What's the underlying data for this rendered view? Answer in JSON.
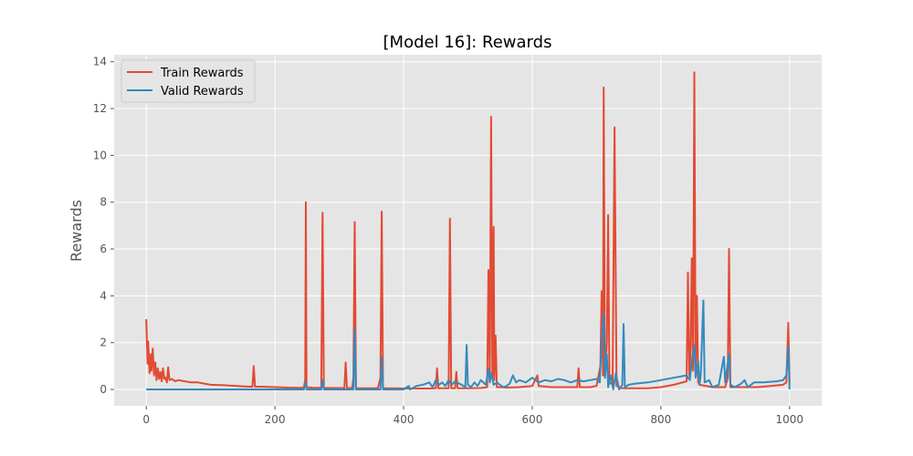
{
  "chart_data": {
    "type": "line",
    "title": "[Model 16]: Rewards",
    "xlabel": "",
    "ylabel": "Rewards",
    "xlim": [
      -50,
      1050
    ],
    "ylim": [
      -0.7,
      14.3
    ],
    "xticks": [
      0,
      200,
      400,
      600,
      800,
      1000
    ],
    "yticks": [
      0,
      2,
      4,
      6,
      8,
      10,
      12,
      14
    ],
    "grid": true,
    "legend_position": "top-left",
    "background_color": "#e5e5e5",
    "series": [
      {
        "name": "Train Rewards",
        "color": "#e24a33",
        "points": [
          [
            0,
            3.0
          ],
          [
            2,
            1.1
          ],
          [
            3,
            2.05
          ],
          [
            5,
            0.7
          ],
          [
            7,
            1.5
          ],
          [
            8,
            0.8
          ],
          [
            10,
            1.75
          ],
          [
            12,
            0.6
          ],
          [
            14,
            1.15
          ],
          [
            16,
            0.4
          ],
          [
            18,
            0.9
          ],
          [
            20,
            0.45
          ],
          [
            22,
            0.75
          ],
          [
            24,
            0.35
          ],
          [
            26,
            0.9
          ],
          [
            28,
            0.45
          ],
          [
            30,
            0.5
          ],
          [
            32,
            0.3
          ],
          [
            34,
            0.95
          ],
          [
            36,
            0.4
          ],
          [
            40,
            0.45
          ],
          [
            45,
            0.35
          ],
          [
            50,
            0.4
          ],
          [
            60,
            0.35
          ],
          [
            70,
            0.3
          ],
          [
            80,
            0.3
          ],
          [
            90,
            0.25
          ],
          [
            100,
            0.2
          ],
          [
            120,
            0.18
          ],
          [
            140,
            0.15
          ],
          [
            160,
            0.12
          ],
          [
            165,
            0.12
          ],
          [
            167,
            1.0
          ],
          [
            169,
            0.12
          ],
          [
            180,
            0.12
          ],
          [
            200,
            0.1
          ],
          [
            220,
            0.08
          ],
          [
            240,
            0.07
          ],
          [
            245,
            0.08
          ],
          [
            247,
            0.4
          ],
          [
            248,
            8.0
          ],
          [
            249,
            0.1
          ],
          [
            260,
            0.07
          ],
          [
            272,
            0.07
          ],
          [
            274,
            7.55
          ],
          [
            276,
            0.07
          ],
          [
            290,
            0.06
          ],
          [
            308,
            0.06
          ],
          [
            310,
            1.15
          ],
          [
            312,
            0.06
          ],
          [
            320,
            0.06
          ],
          [
            322,
            0.5
          ],
          [
            324,
            7.15
          ],
          [
            326,
            0.05
          ],
          [
            340,
            0.05
          ],
          [
            360,
            0.05
          ],
          [
            364,
            0.5
          ],
          [
            366,
            7.6
          ],
          [
            368,
            0.05
          ],
          [
            380,
            0.05
          ],
          [
            400,
            0.04
          ],
          [
            420,
            0.04
          ],
          [
            440,
            0.04
          ],
          [
            450,
            0.05
          ],
          [
            452,
            0.9
          ],
          [
            454,
            0.05
          ],
          [
            470,
            0.05
          ],
          [
            472,
            7.3
          ],
          [
            474,
            0.05
          ],
          [
            480,
            0.05
          ],
          [
            482,
            0.75
          ],
          [
            484,
            0.05
          ],
          [
            500,
            0.05
          ],
          [
            520,
            0.06
          ],
          [
            530,
            0.1
          ],
          [
            532,
            5.1
          ],
          [
            534,
            0.3
          ],
          [
            536,
            11.65
          ],
          [
            538,
            0.5
          ],
          [
            540,
            6.95
          ],
          [
            541,
            0.4
          ],
          [
            543,
            2.3
          ],
          [
            545,
            0.1
          ],
          [
            550,
            0.1
          ],
          [
            560,
            0.08
          ],
          [
            580,
            0.1
          ],
          [
            600,
            0.15
          ],
          [
            608,
            0.6
          ],
          [
            610,
            0.15
          ],
          [
            630,
            0.1
          ],
          [
            650,
            0.1
          ],
          [
            670,
            0.1
          ],
          [
            672,
            0.9
          ],
          [
            674,
            0.1
          ],
          [
            690,
            0.1
          ],
          [
            700,
            0.15
          ],
          [
            706,
            1.0
          ],
          [
            708,
            4.2
          ],
          [
            710,
            0.6
          ],
          [
            711,
            12.9
          ],
          [
            713,
            0.5
          ],
          [
            716,
            2.0
          ],
          [
            718,
            7.45
          ],
          [
            720,
            0.3
          ],
          [
            725,
            0.2
          ],
          [
            728,
            11.2
          ],
          [
            731,
            0.15
          ],
          [
            740,
            0.05
          ],
          [
            760,
            0.05
          ],
          [
            780,
            0.05
          ],
          [
            800,
            0.1
          ],
          [
            820,
            0.2
          ],
          [
            840,
            0.35
          ],
          [
            842,
            5.0
          ],
          [
            844,
            0.6
          ],
          [
            846,
            1.5
          ],
          [
            848,
            5.6
          ],
          [
            850,
            0.8
          ],
          [
            852,
            13.55
          ],
          [
            854,
            0.6
          ],
          [
            856,
            4.0
          ],
          [
            858,
            0.3
          ],
          [
            860,
            0.2
          ],
          [
            880,
            0.1
          ],
          [
            900,
            0.1
          ],
          [
            904,
            0.5
          ],
          [
            906,
            6.0
          ],
          [
            908,
            0.1
          ],
          [
            930,
            0.1
          ],
          [
            950,
            0.1
          ],
          [
            970,
            0.15
          ],
          [
            990,
            0.2
          ],
          [
            995,
            0.3
          ],
          [
            998,
            2.85
          ],
          [
            1000,
            0.3
          ]
        ]
      },
      {
        "name": "Valid Rewards",
        "color": "#348abd",
        "points": [
          [
            0,
            0.0
          ],
          [
            100,
            0.0
          ],
          [
            200,
            0.0
          ],
          [
            245,
            0.0
          ],
          [
            247,
            0.3
          ],
          [
            249,
            0.0
          ],
          [
            272,
            0.0
          ],
          [
            274,
            0.4
          ],
          [
            276,
            0.0
          ],
          [
            322,
            0.0
          ],
          [
            324,
            2.6
          ],
          [
            326,
            0.0
          ],
          [
            364,
            0.0
          ],
          [
            366,
            1.4
          ],
          [
            368,
            0.0
          ],
          [
            400,
            0.0
          ],
          [
            408,
            0.15
          ],
          [
            410,
            0.0
          ],
          [
            420,
            0.15
          ],
          [
            430,
            0.2
          ],
          [
            440,
            0.3
          ],
          [
            445,
            0.1
          ],
          [
            450,
            0.4
          ],
          [
            455,
            0.2
          ],
          [
            460,
            0.3
          ],
          [
            465,
            0.15
          ],
          [
            470,
            0.4
          ],
          [
            475,
            0.2
          ],
          [
            480,
            0.35
          ],
          [
            490,
            0.2
          ],
          [
            496,
            0.1
          ],
          [
            498,
            1.9
          ],
          [
            500,
            0.2
          ],
          [
            505,
            0.1
          ],
          [
            510,
            0.3
          ],
          [
            515,
            0.15
          ],
          [
            520,
            0.4
          ],
          [
            528,
            0.2
          ],
          [
            532,
            0.9
          ],
          [
            534,
            0.3
          ],
          [
            536,
            0.7
          ],
          [
            540,
            0.2
          ],
          [
            545,
            0.3
          ],
          [
            550,
            0.2
          ],
          [
            555,
            0.1
          ],
          [
            560,
            0.15
          ],
          [
            565,
            0.25
          ],
          [
            570,
            0.6
          ],
          [
            575,
            0.3
          ],
          [
            580,
            0.4
          ],
          [
            590,
            0.3
          ],
          [
            600,
            0.5
          ],
          [
            610,
            0.3
          ],
          [
            620,
            0.4
          ],
          [
            630,
            0.35
          ],
          [
            640,
            0.45
          ],
          [
            650,
            0.4
          ],
          [
            660,
            0.3
          ],
          [
            670,
            0.4
          ],
          [
            680,
            0.35
          ],
          [
            690,
            0.4
          ],
          [
            700,
            0.45
          ],
          [
            705,
            0.3
          ],
          [
            708,
            2.0
          ],
          [
            711,
            3.25
          ],
          [
            713,
            0.5
          ],
          [
            716,
            1.5
          ],
          [
            718,
            0.1
          ],
          [
            722,
            0.6
          ],
          [
            726,
            0.0
          ],
          [
            730,
            0.7
          ],
          [
            735,
            0.0
          ],
          [
            740,
            0.2
          ],
          [
            742,
            2.8
          ],
          [
            744,
            0.1
          ],
          [
            750,
            0.2
          ],
          [
            760,
            0.25
          ],
          [
            780,
            0.3
          ],
          [
            800,
            0.4
          ],
          [
            820,
            0.5
          ],
          [
            840,
            0.6
          ],
          [
            845,
            0.4
          ],
          [
            848,
            1.2
          ],
          [
            852,
            1.9
          ],
          [
            854,
            0.5
          ],
          [
            858,
            1.2
          ],
          [
            860,
            0.2
          ],
          [
            862,
            0.6
          ],
          [
            866,
            3.8
          ],
          [
            868,
            0.3
          ],
          [
            875,
            0.4
          ],
          [
            880,
            0.1
          ],
          [
            890,
            0.2
          ],
          [
            898,
            1.4
          ],
          [
            900,
            0.3
          ],
          [
            906,
            1.5
          ],
          [
            908,
            0.2
          ],
          [
            915,
            0.1
          ],
          [
            925,
            0.25
          ],
          [
            930,
            0.4
          ],
          [
            935,
            0.1
          ],
          [
            945,
            0.3
          ],
          [
            960,
            0.3
          ],
          [
            980,
            0.35
          ],
          [
            990,
            0.4
          ],
          [
            995,
            0.6
          ],
          [
            998,
            1.85
          ],
          [
            1000,
            0.0
          ]
        ]
      }
    ]
  }
}
